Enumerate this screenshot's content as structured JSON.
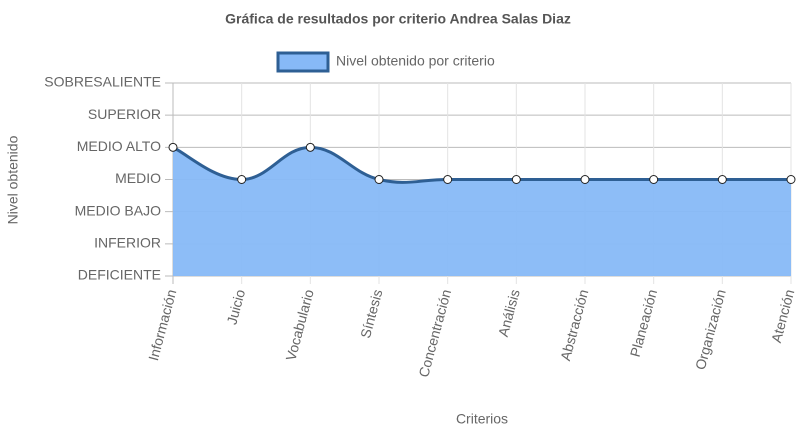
{
  "chart_data": {
    "type": "line",
    "title": "Gráfica de resultados por criterio Andrea Salas Diaz",
    "xlabel": "Criterios",
    "ylabel": "Nivel obtenido",
    "categories": [
      "Información",
      "Juicio",
      "Vocabulario",
      "Síntesis",
      "Concentración",
      "Análisis",
      "Abstracción",
      "Planeación",
      "Organización",
      "Atención"
    ],
    "series": [
      {
        "name": "Nivel obtenido por criterio",
        "color": "#2e5f94",
        "fill": "#87b9f7",
        "values": [
          4,
          3,
          4,
          3,
          3,
          3,
          3,
          3,
          3,
          3
        ]
      }
    ],
    "ylim": [
      0,
      6
    ],
    "yticks": [
      {
        "value": 0,
        "label": "DEFICIENTE"
      },
      {
        "value": 1,
        "label": "INFERIOR"
      },
      {
        "value": 2,
        "label": "MEDIO BAJO"
      },
      {
        "value": 3,
        "label": "MEDIO"
      },
      {
        "value": 4,
        "label": "MEDIO ALTO"
      },
      {
        "value": 5,
        "label": "SUPERIOR"
      },
      {
        "value": 6,
        "label": "SOBRESALIENTE"
      }
    ],
    "grid": true,
    "legend": "top"
  }
}
